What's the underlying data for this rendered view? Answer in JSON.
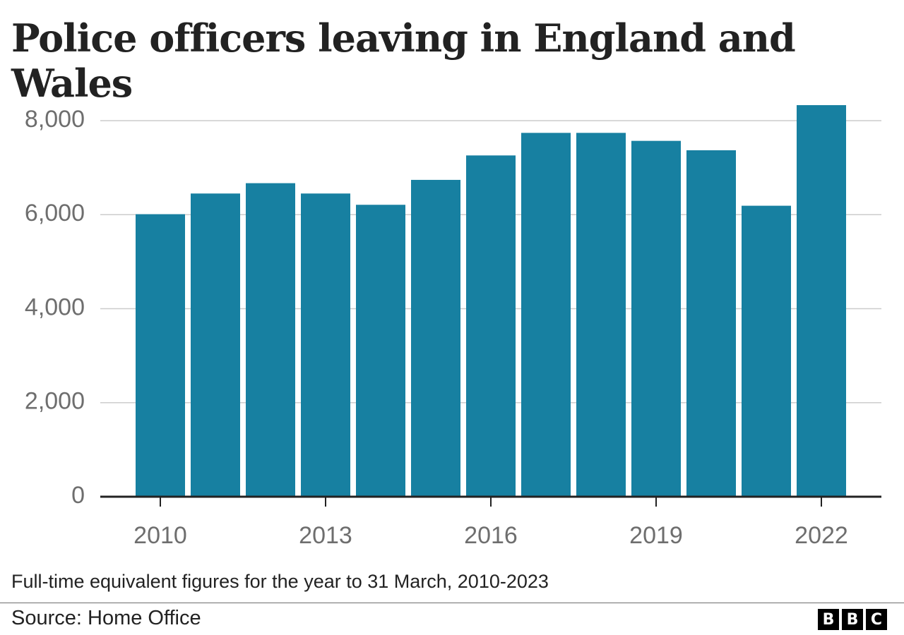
{
  "chart_data": {
    "type": "bar",
    "title": "Police officers leaving in England and Wales",
    "xlabel": "",
    "ylabel": "",
    "categories": [
      "2010",
      "2011",
      "2012",
      "2013",
      "2014",
      "2015",
      "2016",
      "2017",
      "2018",
      "2019",
      "2020",
      "2021",
      "2022"
    ],
    "values": [
      6010,
      6450,
      6670,
      6450,
      6210,
      6740,
      7260,
      7740,
      7740,
      7570,
      7370,
      6190,
      8330
    ],
    "ylim": [
      0,
      8000
    ],
    "yticks": [
      0,
      2000,
      4000,
      6000,
      8000
    ],
    "ytick_labels": [
      "0",
      "2,000",
      "4,000",
      "6,000",
      "8,000"
    ],
    "xtick_labels": [
      "2010",
      "2013",
      "2016",
      "2019",
      "2022"
    ],
    "grid": true,
    "bar_color": "#1780a1"
  },
  "note": "Full-time equivalent figures for the year to 31 March, 2010-2023",
  "source": "Source: Home Office",
  "logo": [
    "B",
    "B",
    "C"
  ]
}
